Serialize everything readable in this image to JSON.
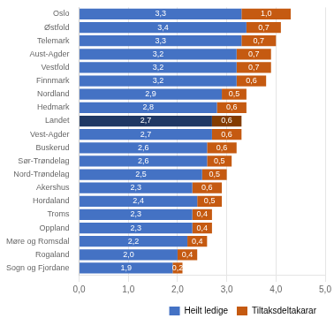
{
  "chart_data": {
    "type": "bar",
    "orientation": "horizontal",
    "stacked": true,
    "categories": [
      "Sogn og Fjordane",
      "Rogaland",
      "Møre og Romsdal",
      "Oppland",
      "Troms",
      "Hordaland",
      "Akershus",
      "Nord-Trøndelag",
      "Sør-Trøndelag",
      "Buskerud",
      "Vest-Agder",
      "Landet",
      "Hedmark",
      "Nordland",
      "Finnmark",
      "Vestfold",
      "Aust-Agder",
      "Telemark",
      "Østfold",
      "Oslo"
    ],
    "series": [
      {
        "name": "Heilt ledige",
        "color": "#4472C4",
        "colors": [
          "#4472C4",
          "#4472C4",
          "#4472C4",
          "#4472C4",
          "#4472C4",
          "#4472C4",
          "#4472C4",
          "#4472C4",
          "#4472C4",
          "#4472C4",
          "#4472C4",
          "#1F3864",
          "#4472C4",
          "#4472C4",
          "#4472C4",
          "#4472C4",
          "#4472C4",
          "#4472C4",
          "#4472C4",
          "#4472C4"
        ],
        "values": [
          1.9,
          2.0,
          2.2,
          2.3,
          2.3,
          2.4,
          2.3,
          2.5,
          2.6,
          2.6,
          2.7,
          2.7,
          2.8,
          2.9,
          3.2,
          3.2,
          3.2,
          3.3,
          3.4,
          3.3
        ],
        "value_labels": [
          "1,9",
          "2,0",
          "2,2",
          "2,3",
          "2,3",
          "2,4",
          "2,3",
          "2,5",
          "2,6",
          "2,6",
          "2,7",
          "2,7",
          "2,8",
          "2,9",
          "3,2",
          "3,2",
          "3,2",
          "3,3",
          "3,4",
          "3,3"
        ]
      },
      {
        "name": "Tiltaksdeltakarar",
        "color": "#C55A11",
        "colors": [
          "#C55A11",
          "#C55A11",
          "#C55A11",
          "#C55A11",
          "#C55A11",
          "#C55A11",
          "#C55A11",
          "#C55A11",
          "#C55A11",
          "#C55A11",
          "#C55A11",
          "#833C00",
          "#C55A11",
          "#C55A11",
          "#C55A11",
          "#C55A11",
          "#C55A11",
          "#C55A11",
          "#C55A11",
          "#C55A11"
        ],
        "values": [
          0.2,
          0.4,
          0.4,
          0.4,
          0.4,
          0.5,
          0.6,
          0.5,
          0.5,
          0.6,
          0.6,
          0.6,
          0.6,
          0.5,
          0.6,
          0.7,
          0.7,
          0.7,
          0.7,
          1.0
        ],
        "value_labels": [
          "0,2",
          "0,4",
          "0,4",
          "0,4",
          "0,4",
          "0,5",
          "0,6",
          "0,5",
          "0,5",
          "0,6",
          "0,6",
          "0,6",
          "0,6",
          "0,5",
          "0,6",
          "0,7",
          "0,7",
          "0,7",
          "0,7",
          "1,0"
        ]
      }
    ],
    "xlim": [
      0,
      5.0
    ],
    "xticks": [
      {
        "value": 0.0,
        "label": "0,0"
      },
      {
        "value": 1.0,
        "label": "1,0"
      },
      {
        "value": 2.0,
        "label": "2,0"
      },
      {
        "value": 3.0,
        "label": "3,0"
      },
      {
        "value": 4.0,
        "label": "4,0"
      },
      {
        "value": 5.0,
        "label": "5,0"
      }
    ],
    "grid": true,
    "legend": "lower right",
    "data_labels": true
  }
}
